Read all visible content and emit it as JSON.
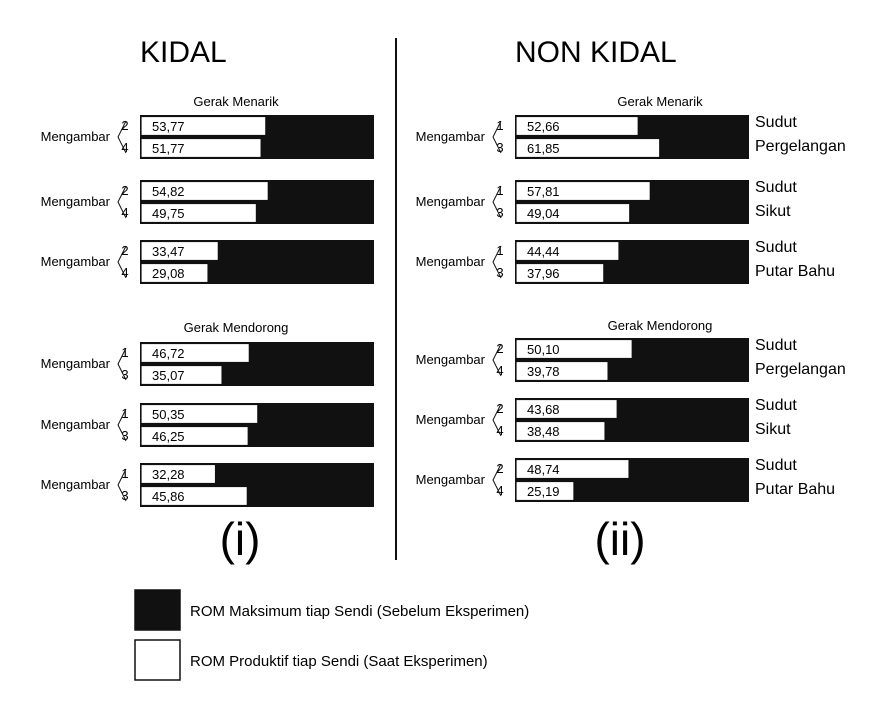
{
  "chart_data": {
    "type": "bar",
    "orientation": "horizontal",
    "stacked_relative_to_maximum": true,
    "scale_max_percent": 100,
    "panels": [
      {
        "title": "KIDAL",
        "label": "(i)",
        "sections": [
          {
            "title": "Gerak Menarik",
            "groups": [
              {
                "label": "Mengambar",
                "joint": "",
                "rows": [
                  {
                    "id": "2",
                    "value": 53.77,
                    "text": "53,77"
                  },
                  {
                    "id": "4",
                    "value": 51.77,
                    "text": "51,77"
                  }
                ]
              },
              {
                "label": "Mengambar",
                "joint": "",
                "rows": [
                  {
                    "id": "2",
                    "value": 54.82,
                    "text": "54,82"
                  },
                  {
                    "id": "4",
                    "value": 49.75,
                    "text": "49,75"
                  }
                ]
              },
              {
                "label": "Mengambar",
                "joint": "",
                "rows": [
                  {
                    "id": "2",
                    "value": 33.47,
                    "text": "33,47"
                  },
                  {
                    "id": "4",
                    "value": 29.08,
                    "text": "29,08"
                  }
                ]
              }
            ]
          },
          {
            "title": "Gerak Mendorong",
            "groups": [
              {
                "label": "Mengambar",
                "joint": "",
                "rows": [
                  {
                    "id": "1",
                    "value": 46.72,
                    "text": "46,72"
                  },
                  {
                    "id": "3",
                    "value": 35.07,
                    "text": "35,07"
                  }
                ]
              },
              {
                "label": "Mengambar",
                "joint": "",
                "rows": [
                  {
                    "id": "1",
                    "value": 50.35,
                    "text": "50,35"
                  },
                  {
                    "id": "3",
                    "value": 46.25,
                    "text": "46,25"
                  }
                ]
              },
              {
                "label": "Mengambar",
                "joint": "",
                "rows": [
                  {
                    "id": "1",
                    "value": 32.28,
                    "text": "32,28"
                  },
                  {
                    "id": "3",
                    "value": 45.86,
                    "text": "45,86"
                  }
                ]
              }
            ]
          }
        ]
      },
      {
        "title": "NON KIDAL",
        "label": "(ii)",
        "sections": [
          {
            "title": "Gerak Menarik",
            "groups": [
              {
                "label": "Mengambar",
                "joint": "Sudut Pergelangan",
                "rows": [
                  {
                    "id": "1",
                    "value": 52.66,
                    "text": "52,66"
                  },
                  {
                    "id": "3",
                    "value": 61.85,
                    "text": "61,85"
                  }
                ]
              },
              {
                "label": "Mengambar",
                "joint": "Sudut Sikut",
                "rows": [
                  {
                    "id": "1",
                    "value": 57.81,
                    "text": "57,81"
                  },
                  {
                    "id": "3",
                    "value": 49.04,
                    "text": "49,04"
                  }
                ]
              },
              {
                "label": "Mengambar",
                "joint": "Sudut Putar Bahu",
                "rows": [
                  {
                    "id": "1",
                    "value": 44.44,
                    "text": "44,44"
                  },
                  {
                    "id": "3",
                    "value": 37.96,
                    "text": "37,96"
                  }
                ]
              }
            ]
          },
          {
            "title": "Gerak Mendorong",
            "groups": [
              {
                "label": "Mengambar",
                "joint": "Sudut Pergelangan",
                "rows": [
                  {
                    "id": "2",
                    "value": 50.1,
                    "text": "50,10"
                  },
                  {
                    "id": "4",
                    "value": 39.78,
                    "text": "39,78"
                  }
                ]
              },
              {
                "label": "Mengambar",
                "joint": "Sudut Sikut",
                "rows": [
                  {
                    "id": "2",
                    "value": 43.68,
                    "text": "43,68"
                  },
                  {
                    "id": "4",
                    "value": 38.48,
                    "text": "38,48"
                  }
                ]
              },
              {
                "label": "Mengambar",
                "joint": "Sudut Putar Bahu",
                "rows": [
                  {
                    "id": "2",
                    "value": 48.74,
                    "text": "48,74"
                  },
                  {
                    "id": "4",
                    "value": 25.19,
                    "text": "25,19"
                  }
                ]
              }
            ]
          }
        ]
      }
    ],
    "legend": [
      {
        "label": "ROM Maksimum tiap Sendi (Sebelum Eksperimen)",
        "color": "#111111"
      },
      {
        "label": "ROM Produktif tiap Sendi (Saat Eksperimen)",
        "color": "#ffffff"
      }
    ],
    "colors": {
      "maximum": "#111111",
      "productive": "#ffffff",
      "outline": "#111111"
    }
  }
}
